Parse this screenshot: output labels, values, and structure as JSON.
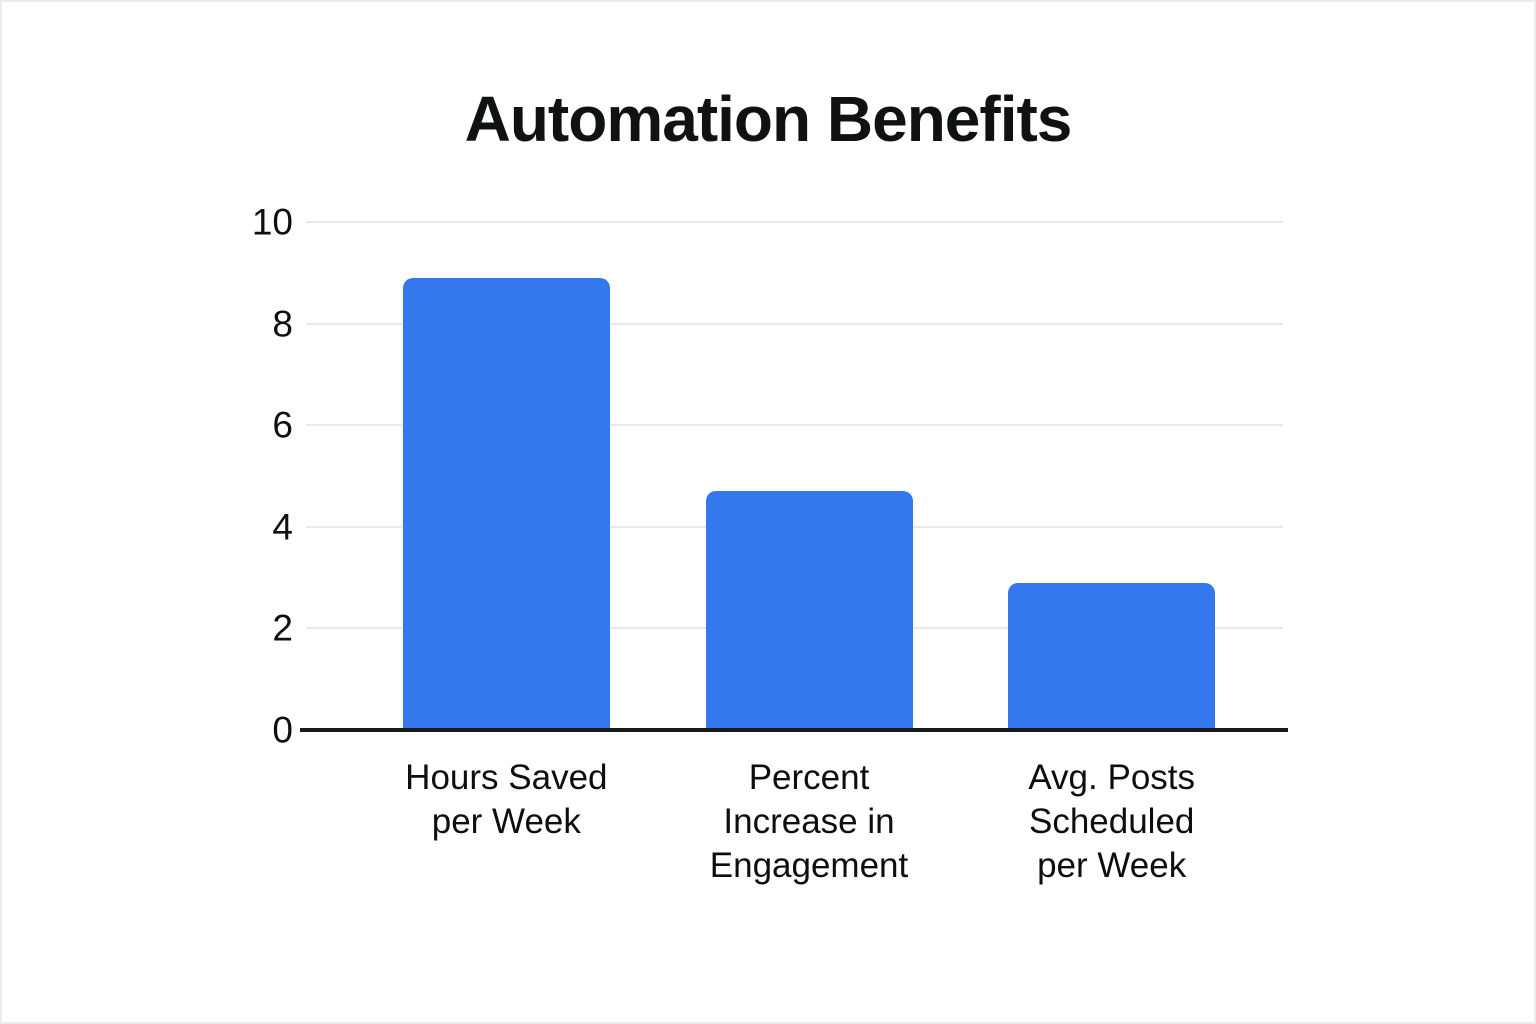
{
  "title": "Automation Benefits",
  "colors": {
    "bar": "#3578EE",
    "axis": "#17191C",
    "gridline": "#E7E9EE",
    "text": "#101113",
    "background": "#FFFFFF"
  },
  "chart_data": {
    "type": "bar",
    "title": "Automation Benefits",
    "categories": [
      "Hours Saved per Week",
      "Percent Increase in Engagement",
      "Avg. Posts Scheduled per Week"
    ],
    "category_lines": [
      [
        "Hours Saved",
        "per Week"
      ],
      [
        "Percent",
        "Increase in",
        "Engagement"
      ],
      [
        "Avg. Posts",
        "Scheduled",
        "per Week"
      ]
    ],
    "values": [
      8.9,
      4.7,
      2.9
    ],
    "bar_color": "#3578EE",
    "xlabel": "",
    "ylabel": "",
    "ylim": [
      0,
      10
    ],
    "yticks": [
      0,
      2,
      4,
      6,
      8,
      10
    ],
    "grid": "horizontal",
    "legend": "none"
  }
}
